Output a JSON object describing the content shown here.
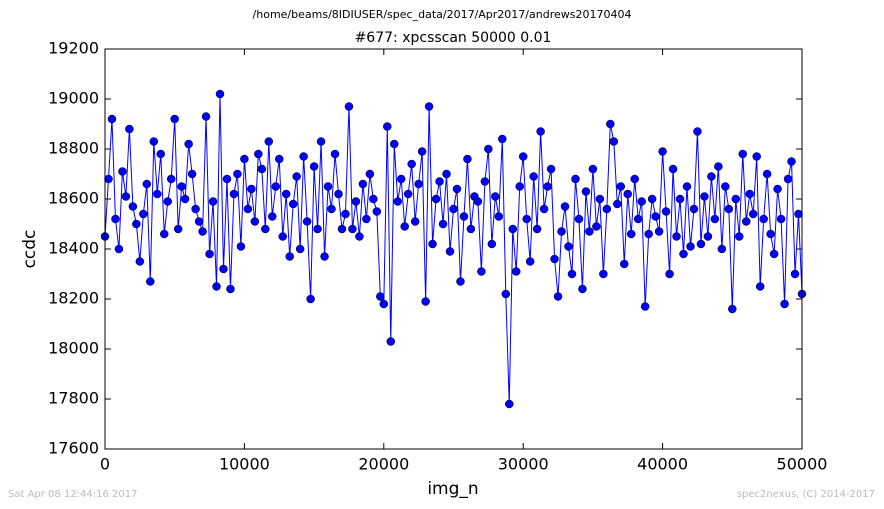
{
  "chart_data": {
    "type": "line",
    "suptitle": "/home/beams/8IDIUSER/spec_data/2017/Apr2017/andrews20170404",
    "title": "#677: xpcsscan 50000 0.01",
    "xlabel": "img_n",
    "ylabel": "ccdc",
    "footer_left": "Sat Apr 08 12:44:16 2017",
    "footer_right": "spec2nexus, (C) 2014-2017",
    "color": "#0000ff",
    "marker": "o",
    "grid": false,
    "xlim": [
      0,
      50000
    ],
    "xticks": [
      0,
      10000,
      20000,
      30000,
      40000,
      50000
    ],
    "ylim": [
      17600,
      19200
    ],
    "yticks": [
      17600,
      17800,
      18000,
      18200,
      18400,
      18600,
      18800,
      19000,
      19200
    ],
    "x": [
      0,
      250,
      500,
      750,
      1000,
      1250,
      1500,
      1750,
      2000,
      2250,
      2500,
      2750,
      3000,
      3250,
      3500,
      3750,
      4000,
      4250,
      4500,
      4750,
      5000,
      5250,
      5500,
      5750,
      6000,
      6250,
      6500,
      6750,
      7000,
      7250,
      7500,
      7750,
      8000,
      8250,
      8500,
      8750,
      9000,
      9250,
      9500,
      9750,
      10000,
      10250,
      10500,
      10750,
      11000,
      11250,
      11500,
      11750,
      12000,
      12250,
      12500,
      12750,
      13000,
      13250,
      13500,
      13750,
      14000,
      14250,
      14500,
      14750,
      15000,
      15250,
      15500,
      15750,
      16000,
      16250,
      16500,
      16750,
      17000,
      17250,
      17500,
      17750,
      18000,
      18250,
      18500,
      18750,
      19000,
      19250,
      19500,
      19750,
      20000,
      20250,
      20500,
      20750,
      21000,
      21250,
      21500,
      21750,
      22000,
      22250,
      22500,
      22750,
      23000,
      23250,
      23500,
      23750,
      24000,
      24250,
      24500,
      24750,
      25000,
      25250,
      25500,
      25750,
      26000,
      26250,
      26500,
      26750,
      27000,
      27250,
      27500,
      27750,
      28000,
      28250,
      28500,
      28750,
      29000,
      29250,
      29500,
      29750,
      30000,
      30250,
      30500,
      30750,
      31000,
      31250,
      31500,
      31750,
      32000,
      32250,
      32500,
      32750,
      33000,
      33250,
      33500,
      33750,
      34000,
      34250,
      34500,
      34750,
      35000,
      35250,
      35500,
      35750,
      36000,
      36250,
      36500,
      36750,
      37000,
      37250,
      37500,
      37750,
      38000,
      38250,
      38500,
      38750,
      39000,
      39250,
      39500,
      39750,
      40000,
      40250,
      40500,
      40750,
      41000,
      41250,
      41500,
      41750,
      42000,
      42250,
      42500,
      42750,
      43000,
      43250,
      43500,
      43750,
      44000,
      44250,
      44500,
      44750,
      45000,
      45250,
      45500,
      45750,
      46000,
      46250,
      46500,
      46750,
      47000,
      47250,
      47500,
      47750,
      48000,
      48250,
      48500,
      48750,
      49000,
      49250,
      49500,
      49750,
      50000
    ],
    "values": [
      18450,
      18680,
      18920,
      18520,
      18400,
      18710,
      18610,
      18880,
      18570,
      18500,
      18350,
      18540,
      18660,
      18270,
      18830,
      18620,
      18780,
      18460,
      18590,
      18680,
      18920,
      18480,
      18650,
      18600,
      18820,
      18700,
      18560,
      18510,
      18470,
      18930,
      18380,
      18590,
      18250,
      19020,
      18320,
      18680,
      18240,
      18620,
      18700,
      18410,
      18760,
      18560,
      18640,
      18510,
      18780,
      18720,
      18480,
      18830,
      18530,
      18650,
      18760,
      18450,
      18620,
      18370,
      18580,
      18690,
      18400,
      18770,
      18510,
      18200,
      18730,
      18480,
      18830,
      18370,
      18650,
      18560,
      18780,
      18620,
      18480,
      18540,
      18970,
      18480,
      18590,
      18450,
      18660,
      18520,
      18700,
      18600,
      18550,
      18210,
      18180,
      18890,
      18030,
      18820,
      18590,
      18680,
      18490,
      18620,
      18740,
      18510,
      18660,
      18790,
      18190,
      18970,
      18420,
      18600,
      18670,
      18500,
      18700,
      18390,
      18560,
      18640,
      18270,
      18530,
      18760,
      18480,
      18610,
      18590,
      18310,
      18670,
      18800,
      18420,
      18610,
      18530,
      18840,
      18220,
      17780,
      18480,
      18310,
      18650,
      18770,
      18520,
      18350,
      18690,
      18480,
      18870,
      18560,
      18650,
      18720,
      18360,
      18210,
      18470,
      18570,
      18410,
      18300,
      18680,
      18520,
      18240,
      18630,
      18470,
      18720,
      18490,
      18600,
      18300,
      18560,
      18900,
      18830,
      18580,
      18650,
      18340,
      18620,
      18460,
      18680,
      18520,
      18590,
      18170,
      18460,
      18600,
      18530,
      18470,
      18790,
      18550,
      18300,
      18720,
      18450,
      18600,
      18380,
      18650,
      18410,
      18560,
      18870,
      18420,
      18610,
      18450,
      18690,
      18520,
      18730,
      18400,
      18650,
      18560,
      18160,
      18600,
      18450,
      18780,
      18510,
      18620,
      18540,
      18770,
      18250,
      18520,
      18700,
      18460,
      18380,
      18640,
      18520,
      18180,
      18680,
      18750,
      18300,
      18540,
      18220
    ]
  }
}
